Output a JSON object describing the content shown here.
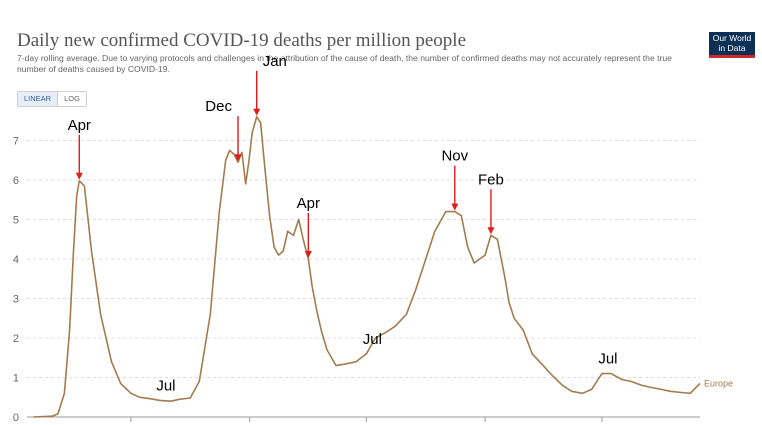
{
  "header": {
    "title": "Daily new confirmed COVID-19 deaths per million people",
    "subtitle": "7-day rolling average. Due to varying protocols and challenges in the attribution of the cause of death, the number of confirmed deaths may not accurately represent the true number of deaths caused by COVID-19."
  },
  "logo": {
    "line1": "Our World",
    "line2": "in Data"
  },
  "controls": {
    "linear_label": "LINEAR",
    "log_label": "LOG",
    "selected": "LINEAR"
  },
  "colors": {
    "series": "#a27c4e",
    "arrow": "#e21b1b",
    "grid": "#dddddd",
    "axis_text": "#666666",
    "annotation_text": "#000000"
  },
  "chart_data": {
    "type": "line",
    "title": "Daily new confirmed COVID-19 deaths per million people",
    "ylim": [
      0,
      8
    ],
    "yticks": [
      0,
      1,
      2,
      3,
      4,
      5,
      6,
      7
    ],
    "grid": "horizontal dashed",
    "series": [
      {
        "name": "Europe",
        "x": [
          "2020-02-01",
          "2020-03-01",
          "2020-03-10",
          "2020-03-20",
          "2020-03-28",
          "2020-04-03",
          "2020-04-08",
          "2020-04-12",
          "2020-04-20",
          "2020-05-01",
          "2020-05-15",
          "2020-06-01",
          "2020-06-15",
          "2020-07-01",
          "2020-07-15",
          "2020-08-01",
          "2020-08-15",
          "2020-09-01",
          "2020-09-15",
          "2020-10-01",
          "2020-10-15",
          "2020-11-01",
          "2020-11-15",
          "2020-11-25",
          "2020-12-01",
          "2020-12-08",
          "2020-12-14",
          "2020-12-20",
          "2020-12-26",
          "2020-12-31",
          "2021-01-05",
          "2021-01-12",
          "2021-01-18",
          "2021-01-24",
          "2021-02-01",
          "2021-02-08",
          "2021-02-15",
          "2021-02-22",
          "2021-03-01",
          "2021-03-10",
          "2021-03-18",
          "2021-03-25",
          "2021-04-02",
          "2021-04-08",
          "2021-04-15",
          "2021-04-22",
          "2021-05-01",
          "2021-05-15",
          "2021-06-01",
          "2021-06-15",
          "2021-07-01",
          "2021-07-15",
          "2021-08-01",
          "2021-08-15",
          "2021-09-01",
          "2021-09-15",
          "2021-10-01",
          "2021-10-15",
          "2021-11-01",
          "2021-11-15",
          "2021-11-25",
          "2021-12-05",
          "2021-12-15",
          "2022-01-01",
          "2022-01-10",
          "2022-01-20",
          "2022-02-01",
          "2022-02-07",
          "2022-02-15",
          "2022-03-01",
          "2022-03-15",
          "2022-04-01",
          "2022-04-15",
          "2022-05-01",
          "2022-05-15",
          "2022-06-01",
          "2022-06-15",
          "2022-07-01",
          "2022-07-15",
          "2022-08-01",
          "2022-08-15",
          "2022-09-01",
          "2022-09-15",
          "2022-10-01",
          "2022-10-15",
          "2022-11-01",
          "2022-11-15",
          "2022-11-30"
        ],
        "values": [
          0,
          0.02,
          0.08,
          0.6,
          2.2,
          4.2,
          5.6,
          5.98,
          5.85,
          4.2,
          2.6,
          1.4,
          0.85,
          0.6,
          0.5,
          0.46,
          0.42,
          0.4,
          0.45,
          0.48,
          0.9,
          2.6,
          5.2,
          6.5,
          6.75,
          6.65,
          6.45,
          6.7,
          5.9,
          6.5,
          7.2,
          7.6,
          7.45,
          6.4,
          5.1,
          4.3,
          4.1,
          4.2,
          4.7,
          4.6,
          5.0,
          4.5,
          4.0,
          3.3,
          2.7,
          2.2,
          1.7,
          1.3,
          1.35,
          1.4,
          1.6,
          2.0,
          2.15,
          2.3,
          2.6,
          3.2,
          4.0,
          4.7,
          5.2,
          5.2,
          5.1,
          4.3,
          3.9,
          4.1,
          4.6,
          4.5,
          3.5,
          2.9,
          2.5,
          2.2,
          1.6,
          1.3,
          1.05,
          0.8,
          0.65,
          0.6,
          0.7,
          1.1,
          1.1,
          0.95,
          0.9,
          0.8,
          0.75,
          0.7,
          0.65,
          0.62,
          0.6,
          0.85
        ]
      }
    ],
    "annotations": [
      {
        "label": "Apr",
        "x": "2020-04-12"
      },
      {
        "label": "Jul",
        "x": "2020-08-15"
      },
      {
        "label": "Dec",
        "x": "2020-12-14"
      },
      {
        "label": "Jan",
        "x": "2021-01-12"
      },
      {
        "label": "Apr",
        "x": "2021-04-02"
      },
      {
        "label": "Jul",
        "x": "2021-07-01"
      },
      {
        "label": "Nov",
        "x": "2021-11-15"
      },
      {
        "label": "Feb",
        "x": "2022-01-10"
      },
      {
        "label": "Jul",
        "x": "2022-07-01"
      }
    ]
  }
}
